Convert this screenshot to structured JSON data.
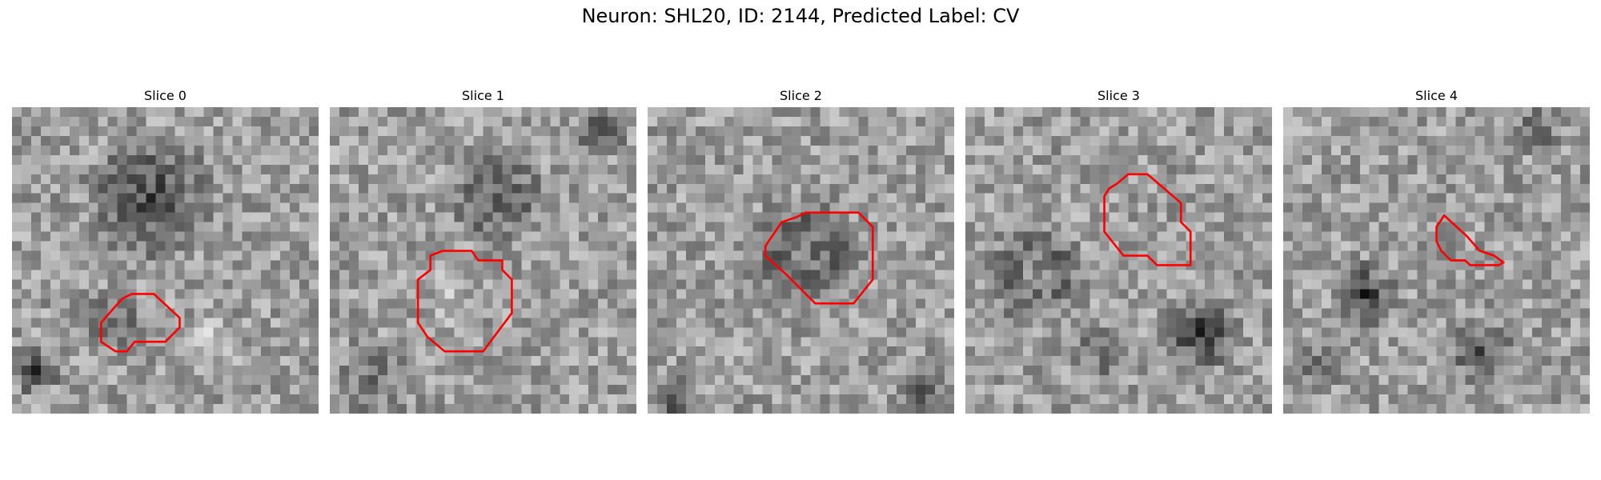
{
  "figure": {
    "title": "Neuron: SHL20, ID: 2144, Predicted Label: CV",
    "contour_color": "#ff0000",
    "colormap": "gray",
    "panels": [
      {
        "title": "Slice 0"
      },
      {
        "title": "Slice 1"
      },
      {
        "title": "Slice 2"
      },
      {
        "title": "Slice 3"
      },
      {
        "title": "Slice 4"
      }
    ]
  }
}
